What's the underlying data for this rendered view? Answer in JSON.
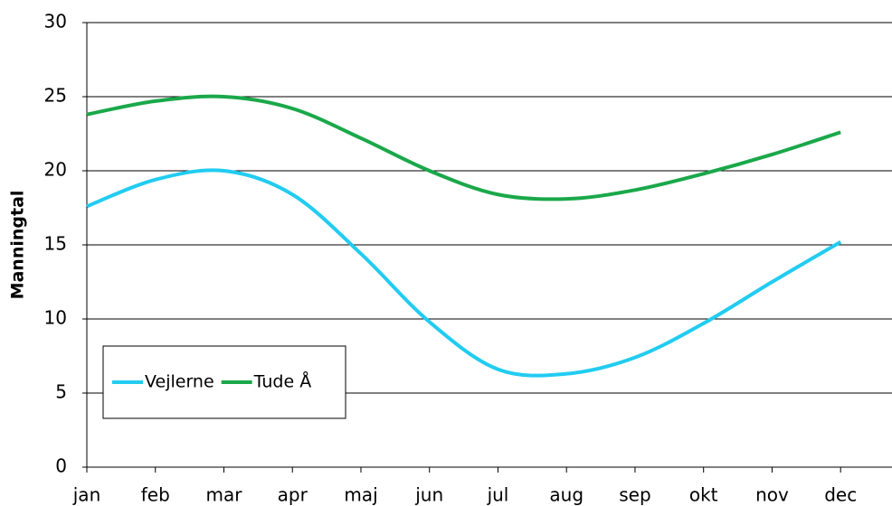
{
  "chart_data": {
    "type": "line",
    "y_label": "Manningtal",
    "categories": [
      "jan",
      "feb",
      "mar",
      "apr",
      "maj",
      "jun",
      "jul",
      "aug",
      "sep",
      "okt",
      "nov",
      "dec"
    ],
    "series": [
      {
        "name": "Vejlerne",
        "color": "#22ccf0",
        "values": [
          17.6,
          19.4,
          20,
          18.4,
          14.4,
          9.8,
          6.6,
          6.3,
          7.4,
          9.7,
          12.5,
          15.2
        ]
      },
      {
        "name": "Tude Å",
        "color": "#1aa84a",
        "values": [
          23.8,
          24.7,
          25,
          24.2,
          22.2,
          20,
          18.4,
          18.1,
          18.7,
          19.8,
          21.1,
          22.6
        ]
      }
    ],
    "ylim": [
      0,
      30
    ],
    "yticks": [
      0,
      5,
      10,
      15,
      20,
      25,
      30
    ],
    "grid": true
  }
}
